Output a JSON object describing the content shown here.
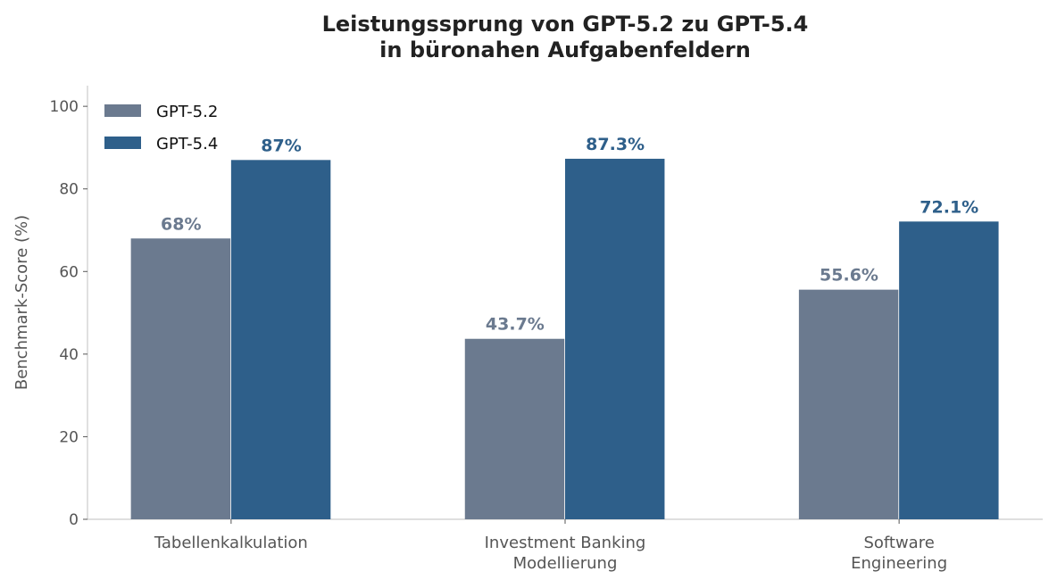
{
  "chart_data": {
    "type": "bar",
    "title": "Leistungssprung von GPT-5.2 zu GPT-5.4\nin büronahen Aufgabenfeldern",
    "xlabel": "",
    "ylabel": "Benchmark-Score (%)",
    "ylim": [
      0,
      105
    ],
    "yticks": [
      0,
      20,
      40,
      60,
      80,
      100
    ],
    "categories": [
      "Tabellenkalkulation",
      "Investment Banking\nModellierung",
      "Software\nEngineering"
    ],
    "series": [
      {
        "name": "GPT-5.2",
        "color": "#6b7a8f",
        "values": [
          68,
          43.7,
          55.6
        ],
        "labels": [
          "68%",
          "43.7%",
          "55.6%"
        ]
      },
      {
        "name": "GPT-5.4",
        "color": "#2e5f8a",
        "values": [
          87,
          87.3,
          72.1
        ],
        "labels": [
          "87%",
          "87.3%",
          "72.1%"
        ]
      }
    ],
    "legend": "top-left",
    "grid": false
  }
}
